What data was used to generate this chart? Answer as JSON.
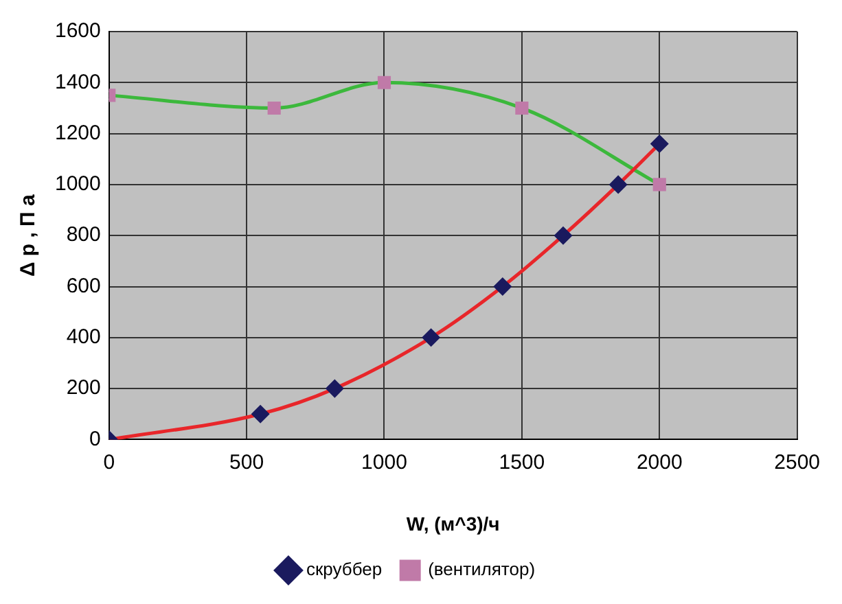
{
  "chart_data": {
    "type": "line",
    "xlabel": "W, (м^3)/ч",
    "ylabel": "Δ p , П а",
    "xlim": [
      0,
      2500
    ],
    "xticks": [
      0,
      500,
      1000,
      1500,
      2000,
      2500
    ],
    "ylim": [
      0,
      1600
    ],
    "yticks": [
      0,
      200,
      400,
      600,
      800,
      1000,
      1200,
      1400,
      1600
    ],
    "grid": true,
    "legend": "bottom",
    "series": [
      {
        "name": "скруббер",
        "color": "#e8262a",
        "marker": "diamond",
        "x": [
          0,
          550,
          820,
          1170,
          1430,
          1650,
          1850,
          2000
        ],
        "values": [
          0,
          100,
          200,
          400,
          600,
          800,
          1000,
          1160
        ]
      },
      {
        "name": "(вентилятор)",
        "color": "#3cb83c",
        "marker": "square",
        "x": [
          0,
          600,
          1000,
          1500,
          2000
        ],
        "values": [
          1350,
          1300,
          1400,
          1300,
          1000
        ]
      }
    ]
  }
}
